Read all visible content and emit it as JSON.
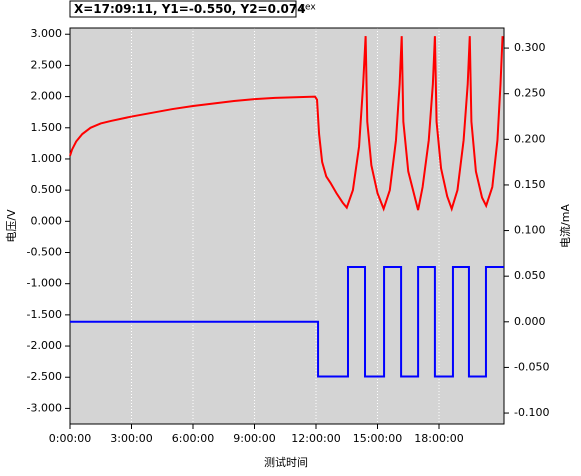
{
  "chart_data": {
    "type": "line",
    "title": "X=17:09:11, Y1=-0.550, Y2=0.074",
    "subtitle": "cex",
    "x_label": "测试时间",
    "y_label": "电压/V",
    "y2_label": "电流/mA",
    "xlim": [
      0,
      21.17
    ],
    "xticks": [
      {
        "value": 0,
        "label": "0:00:00"
      },
      {
        "value": 3,
        "label": "3:00:00"
      },
      {
        "value": 6,
        "label": "6:00:00"
      },
      {
        "value": 9,
        "label": "9:00:00"
      },
      {
        "value": 12,
        "label": "12:00:00"
      },
      {
        "value": 15,
        "label": "15:00:00"
      },
      {
        "value": 18,
        "label": "18:00:00"
      }
    ],
    "ylim": [
      -3.25,
      3.1
    ],
    "yticks": [
      {
        "value": 3,
        "label": "3.000"
      },
      {
        "value": 2.5,
        "label": "2.500"
      },
      {
        "value": 2,
        "label": "2.000"
      },
      {
        "value": 1.5,
        "label": "1.500"
      },
      {
        "value": 1,
        "label": "1.000"
      },
      {
        "value": 0.5,
        "label": "0.500"
      },
      {
        "value": 0,
        "label": "0.000"
      },
      {
        "value": -0.5,
        "label": "-0.500"
      },
      {
        "value": -1,
        "label": "-1.000"
      },
      {
        "value": -1.5,
        "label": "-1.500"
      },
      {
        "value": -2,
        "label": "-2.000"
      },
      {
        "value": -2.5,
        "label": "-2.500"
      },
      {
        "value": -3,
        "label": "-3.000"
      }
    ],
    "y2lim": [
      -0.112,
      0.322
    ],
    "y2ticks": [
      {
        "value": 0.3,
        "label": "0.300"
      },
      {
        "value": 0.25,
        "label": "0.250"
      },
      {
        "value": 0.2,
        "label": "0.200"
      },
      {
        "value": 0.15,
        "label": "0.150"
      },
      {
        "value": 0.1,
        "label": "0.100"
      },
      {
        "value": 0.05,
        "label": "0.050"
      },
      {
        "value": 0,
        "label": "0.000"
      },
      {
        "value": -0.05,
        "label": "-0.050"
      },
      {
        "value": -0.1,
        "label": "-0.100"
      }
    ],
    "grid": true,
    "series": [
      {
        "color": "#ff0000",
        "x": [
          0,
          0.1,
          0.3,
          0.6,
          1.0,
          1.5,
          2.0,
          3.0,
          4.0,
          5.0,
          6.0,
          7.0,
          8.0,
          9.0,
          10.0,
          11.0,
          11.95,
          12.05,
          12.15,
          12.3,
          12.5,
          12.7,
          13.0,
          13.3,
          13.5,
          13.8,
          14.1,
          14.3,
          14.42,
          14.5,
          14.7,
          15.0,
          15.3,
          15.6,
          15.9,
          16.08,
          16.18,
          16.26,
          16.5,
          16.98,
          17.2,
          17.5,
          17.7,
          17.8,
          17.88,
          18.1,
          18.4,
          18.62,
          18.9,
          19.2,
          19.4,
          19.5,
          19.58,
          19.8,
          20.1,
          20.3,
          20.6,
          20.85,
          21.0,
          21.1
        ],
        "values": [
          1.05,
          1.15,
          1.28,
          1.4,
          1.5,
          1.57,
          1.61,
          1.68,
          1.74,
          1.8,
          1.85,
          1.89,
          1.93,
          1.96,
          1.98,
          1.99,
          2.0,
          1.95,
          1.4,
          0.95,
          0.72,
          0.62,
          0.45,
          0.3,
          0.22,
          0.5,
          1.2,
          2.2,
          2.97,
          1.6,
          0.9,
          0.45,
          0.2,
          0.5,
          1.3,
          2.2,
          2.97,
          1.6,
          0.8,
          0.18,
          0.55,
          1.3,
          2.2,
          2.97,
          1.6,
          0.85,
          0.4,
          0.2,
          0.5,
          1.3,
          2.2,
          2.97,
          1.6,
          0.8,
          0.38,
          0.25,
          0.55,
          1.3,
          2.2,
          2.97
        ]
      },
      {
        "color": "#0000ff",
        "axis": "y2",
        "x": [
          0,
          12.1,
          12.1,
          13.56,
          13.56,
          14.39,
          14.39,
          15.32,
          15.32,
          16.15,
          16.15,
          16.98,
          16.98,
          17.8,
          17.8,
          18.68,
          18.68,
          19.46,
          19.46,
          20.29,
          20.29,
          21.17
        ],
        "values": [
          0,
          0,
          -0.06,
          -0.06,
          0.06,
          0.06,
          -0.06,
          -0.06,
          0.06,
          0.06,
          -0.06,
          -0.06,
          0.06,
          0.06,
          -0.06,
          -0.06,
          0.06,
          0.06,
          -0.06,
          -0.06,
          0.06,
          0.06
        ]
      }
    ]
  }
}
